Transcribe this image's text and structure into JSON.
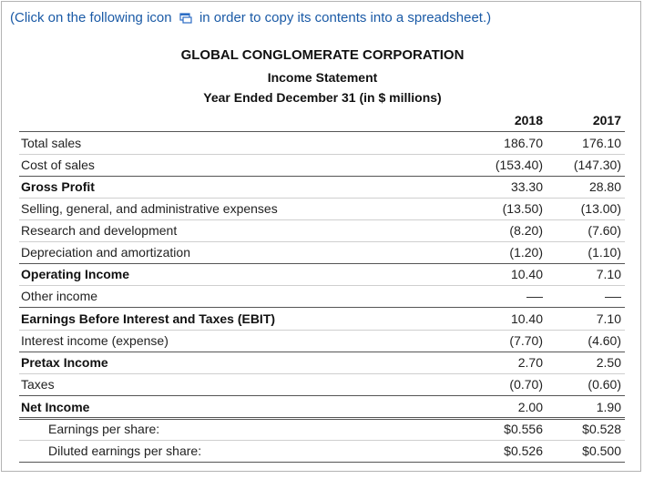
{
  "instruction": {
    "before": "(Click on the following icon",
    "after": "in order to copy its contents into a spreadsheet.)",
    "icon": "copy-to-spreadsheet-icon"
  },
  "header": {
    "company": "GLOBAL CONGLOMERATE CORPORATION",
    "statement": "Income Statement",
    "period": "Year Ended December 31 (in $ millions)"
  },
  "columns": {
    "y2018": "2018",
    "y2017": "2017"
  },
  "rows": {
    "total_sales": {
      "label": "Total sales",
      "v2018": "186.70",
      "v2017": "176.10"
    },
    "cost_of_sales": {
      "label": "Cost of sales",
      "v2018": "(153.40)",
      "v2017": "(147.30)"
    },
    "gross_profit": {
      "label": "Gross Profit",
      "v2018": "33.30",
      "v2017": "28.80"
    },
    "sga": {
      "label": "Selling, general, and administrative expenses",
      "v2018": "(13.50)",
      "v2017": "(13.00)"
    },
    "rnd": {
      "label": "Research and development",
      "v2018": "(8.20)",
      "v2017": "(7.60)"
    },
    "da": {
      "label": "Depreciation and amortization",
      "v2018": "(1.20)",
      "v2017": "(1.10)"
    },
    "operating_income": {
      "label": "Operating Income",
      "v2018": "10.40",
      "v2017": "7.10"
    },
    "other_income": {
      "label": "Other income"
    },
    "ebit": {
      "label": "Earnings Before Interest and Taxes (EBIT)",
      "v2018": "10.40",
      "v2017": "7.10"
    },
    "interest": {
      "label": "Interest income (expense)",
      "v2018": "(7.70)",
      "v2017": "(4.60)"
    },
    "pretax": {
      "label": "Pretax Income",
      "v2018": "2.70",
      "v2017": "2.50"
    },
    "taxes": {
      "label": "Taxes",
      "v2018": "(0.70)",
      "v2017": "(0.60)"
    },
    "net_income": {
      "label": "Net Income",
      "v2018": "2.00",
      "v2017": "1.90"
    },
    "eps": {
      "label": "Earnings per share:",
      "v2018": "$0.556",
      "v2017": "$0.528"
    },
    "diluted_eps": {
      "label": "Diluted earnings per share:",
      "v2018": "$0.526",
      "v2017": "$0.500"
    }
  }
}
